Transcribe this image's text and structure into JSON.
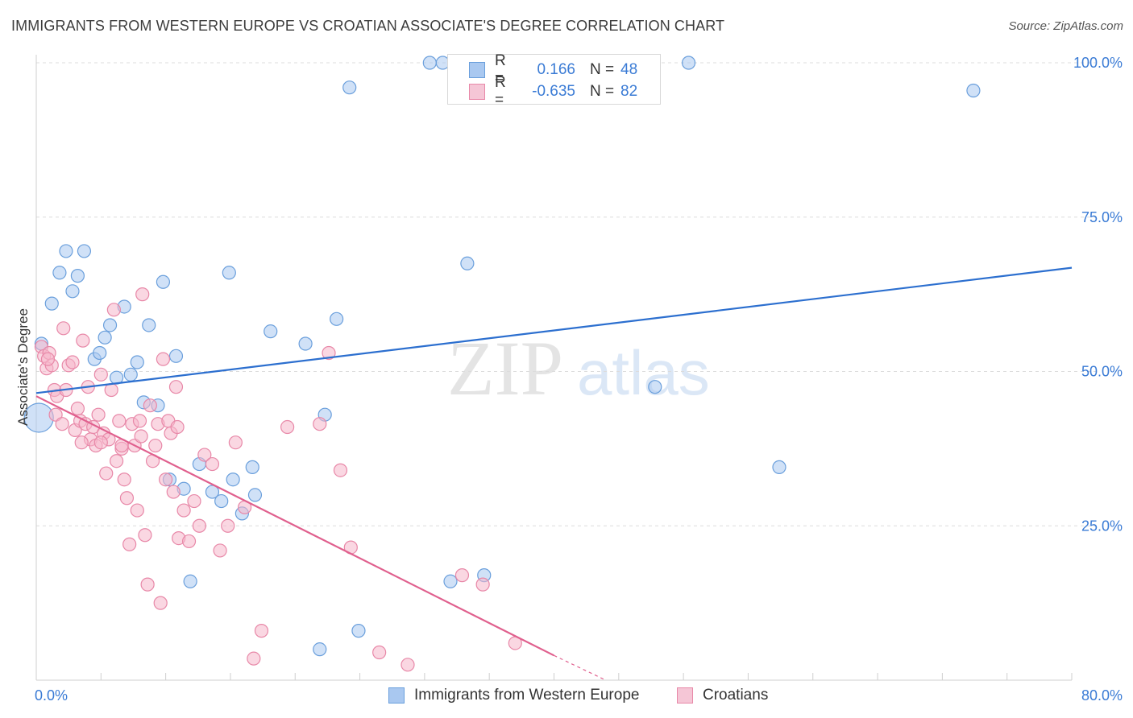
{
  "header": {
    "title": "IMMIGRANTS FROM WESTERN EUROPE VS CROATIAN ASSOCIATE'S DEGREE CORRELATION CHART",
    "source": "Source: ZipAtlas.com"
  },
  "watermark": {
    "zip": "ZIP",
    "atlas": "atlas"
  },
  "legend": {
    "series1": {
      "r_label": "R =",
      "r_value": "0.166",
      "n_label": "N =",
      "n_value": "48"
    },
    "series2": {
      "r_label": "R =",
      "r_value": "-0.635",
      "n_label": "N =",
      "n_value": "82"
    }
  },
  "colors": {
    "blue_fill": "#a9c8f0",
    "blue_stroke": "#6a9fdc",
    "blue_line": "#2c6fcf",
    "pink_fill": "#f5b6cb",
    "pink_stroke": "#e888a8",
    "pink_line": "#e0608e",
    "grid": "#dcdcdc",
    "tick_text": "#3a7bd5"
  },
  "chart_data": {
    "type": "scatter",
    "title": "IMMIGRANTS FROM WESTERN EUROPE VS CROATIAN ASSOCIATE'S DEGREE CORRELATION CHART",
    "xlabel": "",
    "ylabel": "Associate's Degree",
    "xlim": [
      0,
      80
    ],
    "ylim": [
      0,
      100
    ],
    "x_tick_labels": [
      "0.0%",
      "80.0%"
    ],
    "y_ticks": [
      25,
      50,
      75,
      100
    ],
    "y_tick_labels": [
      "25.0%",
      "50.0%",
      "75.0%",
      "100.0%"
    ],
    "grid": true,
    "series": [
      {
        "name": "Immigrants from Western Europe",
        "color": "#a9c8f0",
        "trend": {
          "x": [
            0,
            80
          ],
          "y": [
            46.5,
            66.8
          ]
        },
        "points": [
          [
            0.4,
            54.5
          ],
          [
            0.2,
            42.5
          ],
          [
            1.2,
            61.0
          ],
          [
            1.8,
            66.0
          ],
          [
            2.3,
            69.5
          ],
          [
            3.2,
            65.5
          ],
          [
            2.8,
            63.0
          ],
          [
            3.7,
            69.5
          ],
          [
            4.5,
            52.0
          ],
          [
            4.9,
            53.0
          ],
          [
            5.3,
            55.5
          ],
          [
            5.7,
            57.5
          ],
          [
            6.2,
            49.0
          ],
          [
            6.8,
            60.5
          ],
          [
            7.3,
            49.5
          ],
          [
            7.8,
            51.5
          ],
          [
            8.3,
            45.0
          ],
          [
            8.7,
            57.5
          ],
          [
            9.4,
            44.5
          ],
          [
            9.8,
            64.5
          ],
          [
            10.8,
            52.5
          ],
          [
            10.3,
            32.5
          ],
          [
            11.4,
            31.0
          ],
          [
            11.9,
            16.0
          ],
          [
            12.6,
            35.0
          ],
          [
            13.6,
            30.5
          ],
          [
            14.3,
            29.0
          ],
          [
            14.9,
            66.0
          ],
          [
            15.2,
            32.5
          ],
          [
            15.9,
            27.0
          ],
          [
            16.7,
            34.5
          ],
          [
            16.9,
            30.0
          ],
          [
            18.1,
            56.5
          ],
          [
            20.8,
            54.5
          ],
          [
            21.9,
            5.0
          ],
          [
            22.3,
            43.0
          ],
          [
            23.2,
            58.5
          ],
          [
            24.2,
            96.0
          ],
          [
            24.9,
            8.0
          ],
          [
            30.4,
            100.0
          ],
          [
            31.4,
            100.0
          ],
          [
            32.0,
            16.0
          ],
          [
            33.3,
            67.5
          ],
          [
            34.6,
            17.0
          ],
          [
            50.4,
            100.0
          ],
          [
            47.8,
            47.5
          ],
          [
            57.4,
            34.5
          ],
          [
            72.4,
            95.5
          ]
        ]
      },
      {
        "name": "Croatians",
        "color": "#f5b6cb",
        "trend": {
          "x": [
            0,
            40.0
          ],
          "y": [
            46.0,
            4.0
          ]
        },
        "trend_dashed": {
          "x": [
            40.0,
            44.0
          ],
          "y": [
            4.0,
            0.0
          ]
        },
        "points": [
          [
            0.4,
            54.0
          ],
          [
            0.6,
            52.5
          ],
          [
            0.8,
            50.5
          ],
          [
            1.0,
            53.0
          ],
          [
            1.2,
            51.0
          ],
          [
            1.4,
            47.0
          ],
          [
            1.5,
            43.0
          ],
          [
            1.6,
            46.0
          ],
          [
            2.1,
            57.0
          ],
          [
            2.3,
            47.0
          ],
          [
            2.5,
            51.0
          ],
          [
            2.8,
            51.5
          ],
          [
            3.0,
            40.5
          ],
          [
            3.2,
            44.0
          ],
          [
            3.4,
            42.0
          ],
          [
            3.6,
            55.0
          ],
          [
            3.8,
            41.5
          ],
          [
            4.0,
            47.5
          ],
          [
            4.2,
            39.0
          ],
          [
            4.4,
            41.0
          ],
          [
            4.6,
            38.0
          ],
          [
            4.8,
            43.0
          ],
          [
            5.0,
            49.5
          ],
          [
            5.2,
            40.0
          ],
          [
            5.4,
            33.5
          ],
          [
            5.6,
            39.0
          ],
          [
            5.8,
            47.0
          ],
          [
            6.0,
            60.0
          ],
          [
            6.2,
            35.5
          ],
          [
            6.4,
            42.0
          ],
          [
            6.6,
            37.5
          ],
          [
            6.8,
            32.5
          ],
          [
            7.0,
            29.5
          ],
          [
            7.2,
            22.0
          ],
          [
            7.4,
            41.5
          ],
          [
            7.6,
            38.0
          ],
          [
            7.8,
            27.5
          ],
          [
            8.0,
            42.0
          ],
          [
            8.2,
            62.5
          ],
          [
            8.4,
            23.5
          ],
          [
            8.6,
            15.5
          ],
          [
            8.8,
            44.5
          ],
          [
            9.0,
            35.5
          ],
          [
            9.2,
            38.0
          ],
          [
            9.4,
            41.5
          ],
          [
            9.6,
            12.5
          ],
          [
            9.8,
            52.0
          ],
          [
            10.0,
            32.5
          ],
          [
            10.2,
            42.0
          ],
          [
            10.4,
            40.0
          ],
          [
            10.6,
            30.5
          ],
          [
            10.8,
            47.5
          ],
          [
            11.0,
            23.0
          ],
          [
            11.4,
            27.5
          ],
          [
            11.8,
            22.5
          ],
          [
            12.2,
            29.0
          ],
          [
            12.6,
            25.0
          ],
          [
            13.0,
            36.5
          ],
          [
            13.6,
            35.0
          ],
          [
            14.2,
            21.0
          ],
          [
            14.8,
            25.0
          ],
          [
            15.4,
            38.5
          ],
          [
            16.1,
            28.0
          ],
          [
            16.8,
            3.5
          ],
          [
            17.4,
            8.0
          ],
          [
            19.4,
            41.0
          ],
          [
            21.9,
            41.5
          ],
          [
            22.6,
            53.0
          ],
          [
            23.5,
            34.0
          ],
          [
            24.3,
            21.5
          ],
          [
            26.5,
            4.5
          ],
          [
            28.7,
            2.5
          ],
          [
            32.9,
            17.0
          ],
          [
            34.5,
            15.5
          ],
          [
            37.0,
            6.0
          ],
          [
            0.9,
            52.0
          ],
          [
            2.0,
            41.5
          ],
          [
            3.5,
            38.5
          ],
          [
            5.0,
            38.5
          ],
          [
            6.6,
            38.0
          ],
          [
            8.1,
            39.5
          ],
          [
            10.9,
            41.0
          ]
        ]
      }
    ]
  },
  "bottom_legend": {
    "series1_label": "Immigrants from Western Europe",
    "series2_label": "Croatians"
  }
}
